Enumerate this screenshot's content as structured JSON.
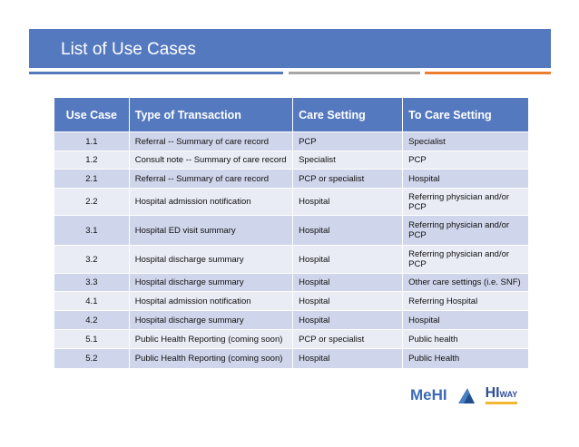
{
  "title": "List of Use Cases",
  "colors": {
    "accent": "#5479bf",
    "gray": "#a6a6a6",
    "orange": "#ed7d31"
  },
  "table": {
    "headers": [
      "Use Case",
      "Type of Transaction",
      "Care Setting",
      "To Care Setting"
    ],
    "rows": [
      [
        "1.1",
        "Referral -- Summary of care record",
        "PCP",
        "Specialist"
      ],
      [
        "1.2",
        "Consult note -- Summary of care record",
        "Specialist",
        "PCP"
      ],
      [
        "2.1",
        "Referral -- Summary of care record",
        "PCP or specialist",
        "Hospital"
      ],
      [
        "2.2",
        "Hospital admission notification",
        "Hospital",
        "Referring physician and/or PCP"
      ],
      [
        "3.1",
        "Hospital ED visit summary",
        "Hospital",
        "Referring physician and/or PCP"
      ],
      [
        "3.2",
        "Hospital discharge summary",
        "Hospital",
        "Referring physician and/or PCP"
      ],
      [
        "3.3",
        "Hospital discharge summary",
        "Hospital",
        "Other care settings (i.e. SNF)"
      ],
      [
        "4.1",
        "Hospital admission notification",
        "Hospital",
        "Referring Hospital"
      ],
      [
        "4.2",
        "Hospital discharge summary",
        "Hospital",
        "Hospital"
      ],
      [
        "5.1",
        "Public Health Reporting (coming soon)",
        "PCP or specialist",
        "Public health"
      ],
      [
        "5.2",
        "Public Health Reporting (coming soon)",
        "Hospital",
        "Public Health"
      ]
    ]
  },
  "logos": [
    "MeHI",
    "THE HIWAY"
  ]
}
